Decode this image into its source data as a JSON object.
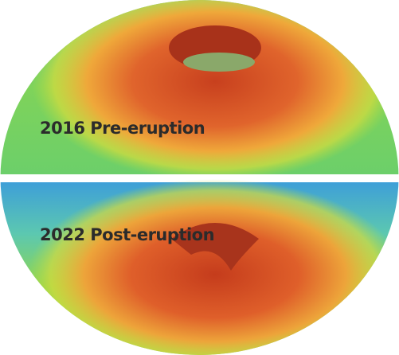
{
  "labels": {
    "top": "2016 Pre-eruption",
    "bottom": "2022 Post-eruption"
  }
}
